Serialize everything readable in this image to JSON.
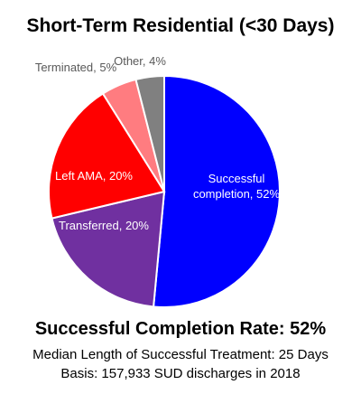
{
  "chart_data": {
    "type": "pie",
    "title": "Short-Term Residential (<30 Days)",
    "slices": [
      {
        "label": "Successful completion",
        "value": 52,
        "color": "#0000ff",
        "text_color": "#ffffff",
        "lines": [
          "Successful",
          "completion, 52%"
        ]
      },
      {
        "label": "Transferred",
        "value": 20,
        "color": "#7030a0",
        "text_color": "#ffffff",
        "lines": [
          "Transferred, 20%"
        ]
      },
      {
        "label": "Left AMA",
        "value": 20,
        "color": "#ff0000",
        "text_color": "#ffffff",
        "lines": [
          "Left AMA, 20%"
        ]
      },
      {
        "label": "Terminated",
        "value": 5,
        "color": "#ff7c80",
        "text_color": "#595959",
        "lines": [
          "Terminated, 5%"
        ]
      },
      {
        "label": "Other",
        "value": 4,
        "color": "#808080",
        "text_color": "#595959",
        "lines": [
          "Other, 4%"
        ]
      }
    ]
  },
  "footer": {
    "completion_rate": "Successful Completion Rate: 52%",
    "median_length": "Median Length of Successful Treatment: 25 Days",
    "basis": "Basis: 157,933 SUD discharges in 2018"
  }
}
